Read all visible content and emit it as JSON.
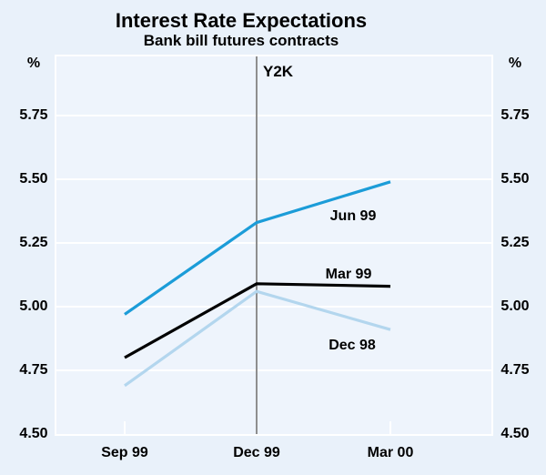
{
  "ui": {
    "background_color": "#e9f1fa",
    "plot_background_color": "#eef4fc",
    "gridline_color": "#ffffff",
    "y2k_line_color": "#8e8e8e",
    "text_color": "#000000"
  },
  "chart_data": {
    "type": "line",
    "title": "Interest Rate Expectations",
    "subtitle": "Bank bill futures contracts",
    "ylabel": "%",
    "xlabel": "",
    "categories": [
      "Sep 99",
      "Dec 99",
      "Mar 00"
    ],
    "series": [
      {
        "name": "Dec 98",
        "values": [
          4.69,
          5.06,
          4.91
        ],
        "color": "#b3d6ee"
      },
      {
        "name": "Mar 99",
        "values": [
          4.8,
          5.09,
          5.08
        ],
        "color": "#000000"
      },
      {
        "name": "Jun 99",
        "values": [
          4.97,
          5.33,
          5.49
        ],
        "color": "#1b9cd8"
      }
    ],
    "ylim": [
      4.5,
      5.98
    ],
    "yticks": [
      5.75,
      5.5,
      5.25,
      5.0,
      4.75,
      4.5
    ],
    "ytick_labels": [
      "5.75",
      "5.50",
      "5.25",
      "5.00",
      "4.75",
      "4.50"
    ],
    "grid": "horizontal white gridlines on, duplicated y-axis labels left and right",
    "legend_position": "inline labels beside each line",
    "annotation": {
      "text": "Y2K",
      "x_category": "Dec 99",
      "type": "vertical-line"
    }
  }
}
